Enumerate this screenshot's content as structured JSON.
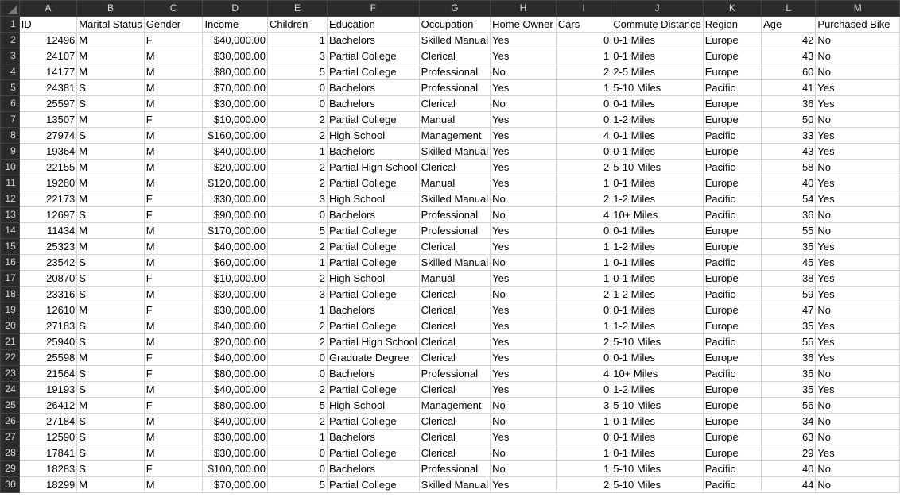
{
  "sheet": {
    "column_letters": [
      "A",
      "B",
      "C",
      "D",
      "E",
      "F",
      "G",
      "H",
      "I",
      "J",
      "K",
      "L",
      "M"
    ],
    "headers": [
      "ID",
      "Marital Status",
      "Gender",
      "Income",
      "Children",
      "Education",
      "Occupation",
      "Home Owner",
      "Cars",
      "Commute Distance",
      "Region",
      "Age",
      "Purchased Bike"
    ],
    "row_numbers": [
      "1",
      "2",
      "3",
      "4",
      "5",
      "6",
      "7",
      "8",
      "9",
      "10",
      "11",
      "12",
      "13",
      "14",
      "15",
      "16",
      "17",
      "18",
      "19",
      "20",
      "21",
      "22",
      "23",
      "24",
      "25",
      "26",
      "27",
      "28",
      "29",
      "30"
    ],
    "rows": [
      [
        "12496",
        "M",
        "F",
        "$40,000.00",
        "1",
        "Bachelors",
        "Skilled Manual",
        "Yes",
        "0",
        "0-1 Miles",
        "Europe",
        "42",
        "No"
      ],
      [
        "24107",
        "M",
        "M",
        "$30,000.00",
        "3",
        "Partial College",
        "Clerical",
        "Yes",
        "1",
        "0-1 Miles",
        "Europe",
        "43",
        "No"
      ],
      [
        "14177",
        "M",
        "M",
        "$80,000.00",
        "5",
        "Partial College",
        "Professional",
        "No",
        "2",
        "2-5 Miles",
        "Europe",
        "60",
        "No"
      ],
      [
        "24381",
        "S",
        "M",
        "$70,000.00",
        "0",
        "Bachelors",
        "Professional",
        "Yes",
        "1",
        "5-10 Miles",
        "Pacific",
        "41",
        "Yes"
      ],
      [
        "25597",
        "S",
        "M",
        "$30,000.00",
        "0",
        "Bachelors",
        "Clerical",
        "No",
        "0",
        "0-1 Miles",
        "Europe",
        "36",
        "Yes"
      ],
      [
        "13507",
        "M",
        "F",
        "$10,000.00",
        "2",
        "Partial College",
        "Manual",
        "Yes",
        "0",
        "1-2 Miles",
        "Europe",
        "50",
        "No"
      ],
      [
        "27974",
        "S",
        "M",
        "$160,000.00",
        "2",
        "High School",
        "Management",
        "Yes",
        "4",
        "0-1 Miles",
        "Pacific",
        "33",
        "Yes"
      ],
      [
        "19364",
        "M",
        "M",
        "$40,000.00",
        "1",
        "Bachelors",
        "Skilled Manual",
        "Yes",
        "0",
        "0-1 Miles",
        "Europe",
        "43",
        "Yes"
      ],
      [
        "22155",
        "M",
        "M",
        "$20,000.00",
        "2",
        "Partial High School",
        "Clerical",
        "Yes",
        "2",
        "5-10 Miles",
        "Pacific",
        "58",
        "No"
      ],
      [
        "19280",
        "M",
        "M",
        "$120,000.00",
        "2",
        "Partial College",
        "Manual",
        "Yes",
        "1",
        "0-1 Miles",
        "Europe",
        "40",
        "Yes"
      ],
      [
        "22173",
        "M",
        "F",
        "$30,000.00",
        "3",
        "High School",
        "Skilled Manual",
        "No",
        "2",
        "1-2 Miles",
        "Pacific",
        "54",
        "Yes"
      ],
      [
        "12697",
        "S",
        "F",
        "$90,000.00",
        "0",
        "Bachelors",
        "Professional",
        "No",
        "4",
        "10+ Miles",
        "Pacific",
        "36",
        "No"
      ],
      [
        "11434",
        "M",
        "M",
        "$170,000.00",
        "5",
        "Partial College",
        "Professional",
        "Yes",
        "0",
        "0-1 Miles",
        "Europe",
        "55",
        "No"
      ],
      [
        "25323",
        "M",
        "M",
        "$40,000.00",
        "2",
        "Partial College",
        "Clerical",
        "Yes",
        "1",
        "1-2 Miles",
        "Europe",
        "35",
        "Yes"
      ],
      [
        "23542",
        "S",
        "M",
        "$60,000.00",
        "1",
        "Partial College",
        "Skilled Manual",
        "No",
        "1",
        "0-1 Miles",
        "Pacific",
        "45",
        "Yes"
      ],
      [
        "20870",
        "S",
        "F",
        "$10,000.00",
        "2",
        "High School",
        "Manual",
        "Yes",
        "1",
        "0-1 Miles",
        "Europe",
        "38",
        "Yes"
      ],
      [
        "23316",
        "S",
        "M",
        "$30,000.00",
        "3",
        "Partial College",
        "Clerical",
        "No",
        "2",
        "1-2 Miles",
        "Pacific",
        "59",
        "Yes"
      ],
      [
        "12610",
        "M",
        "F",
        "$30,000.00",
        "1",
        "Bachelors",
        "Clerical",
        "Yes",
        "0",
        "0-1 Miles",
        "Europe",
        "47",
        "No"
      ],
      [
        "27183",
        "S",
        "M",
        "$40,000.00",
        "2",
        "Partial College",
        "Clerical",
        "Yes",
        "1",
        "1-2 Miles",
        "Europe",
        "35",
        "Yes"
      ],
      [
        "25940",
        "S",
        "M",
        "$20,000.00",
        "2",
        "Partial High School",
        "Clerical",
        "Yes",
        "2",
        "5-10 Miles",
        "Pacific",
        "55",
        "Yes"
      ],
      [
        "25598",
        "M",
        "F",
        "$40,000.00",
        "0",
        "Graduate Degree",
        "Clerical",
        "Yes",
        "0",
        "0-1 Miles",
        "Europe",
        "36",
        "Yes"
      ],
      [
        "21564",
        "S",
        "F",
        "$80,000.00",
        "0",
        "Bachelors",
        "Professional",
        "Yes",
        "4",
        "10+ Miles",
        "Pacific",
        "35",
        "No"
      ],
      [
        "19193",
        "S",
        "M",
        "$40,000.00",
        "2",
        "Partial College",
        "Clerical",
        "Yes",
        "0",
        "1-2 Miles",
        "Europe",
        "35",
        "Yes"
      ],
      [
        "26412",
        "M",
        "F",
        "$80,000.00",
        "5",
        "High School",
        "Management",
        "No",
        "3",
        "5-10 Miles",
        "Europe",
        "56",
        "No"
      ],
      [
        "27184",
        "S",
        "M",
        "$40,000.00",
        "2",
        "Partial College",
        "Clerical",
        "No",
        "1",
        "0-1 Miles",
        "Europe",
        "34",
        "No"
      ],
      [
        "12590",
        "S",
        "M",
        "$30,000.00",
        "1",
        "Bachelors",
        "Clerical",
        "Yes",
        "0",
        "0-1 Miles",
        "Europe",
        "63",
        "No"
      ],
      [
        "17841",
        "S",
        "M",
        "$30,000.00",
        "0",
        "Partial College",
        "Clerical",
        "No",
        "1",
        "0-1 Miles",
        "Europe",
        "29",
        "Yes"
      ],
      [
        "18283",
        "S",
        "F",
        "$100,000.00",
        "0",
        "Bachelors",
        "Professional",
        "No",
        "1",
        "5-10 Miles",
        "Pacific",
        "40",
        "No"
      ],
      [
        "18299",
        "M",
        "M",
        "$70,000.00",
        "5",
        "Partial College",
        "Skilled Manual",
        "Yes",
        "2",
        "5-10 Miles",
        "Pacific",
        "44",
        "No"
      ]
    ]
  },
  "colors": {
    "header_bg": "#2b2b2b",
    "header_text": "#dcdcdc",
    "gridline": "#d4d4d4"
  }
}
